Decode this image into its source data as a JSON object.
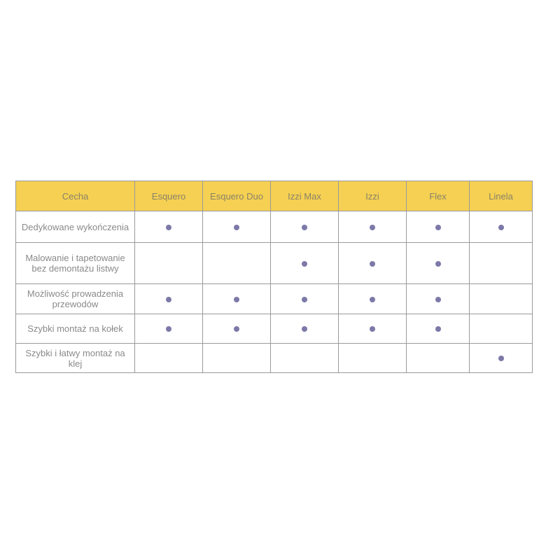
{
  "table": {
    "header": [
      "Cecha",
      "Esquero",
      "Esquero Duo",
      "Izzi Max",
      "Izzi",
      "Flex",
      "Linela"
    ],
    "rows": [
      {
        "feature": "Dedykowane wykończenia",
        "marks": [
          true,
          true,
          true,
          true,
          true,
          true
        ]
      },
      {
        "feature": "Malowanie i tapetowanie bez demontażu listwy",
        "marks": [
          false,
          false,
          true,
          true,
          true,
          false
        ]
      },
      {
        "feature": "Możliwość prowadzenia przewodów",
        "marks": [
          true,
          true,
          true,
          true,
          true,
          false
        ]
      },
      {
        "feature": "Szybki montaż na kołek",
        "marks": [
          true,
          true,
          true,
          true,
          true,
          false
        ]
      },
      {
        "feature": "Szybki i łatwy montaż na klej",
        "marks": [
          false,
          false,
          false,
          false,
          false,
          true
        ]
      }
    ]
  }
}
